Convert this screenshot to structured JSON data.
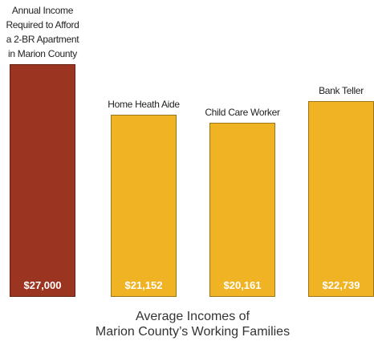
{
  "chart_data": {
    "type": "bar",
    "categories": [
      "Annual Income\nRequired to Afford\na 2-BR Apartment\nin Marion County",
      "Home Heath Aide",
      "Child Care Worker",
      "Bank Teller"
    ],
    "values": [
      27000,
      21152,
      20161,
      22739
    ],
    "value_labels": [
      "$27,000",
      "$21,152",
      "$20,161",
      "$22,739"
    ],
    "colors": [
      "#9b3420",
      "#f0b323",
      "#f0b323",
      "#f0b323"
    ],
    "x_label": "Average Incomes of\nMarion County’s Working Families"
  }
}
